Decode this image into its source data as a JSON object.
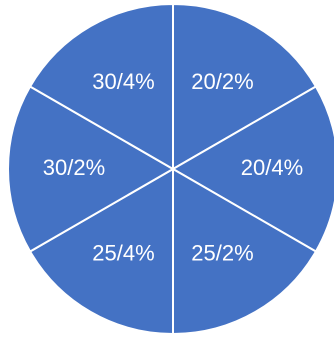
{
  "chart_data": {
    "type": "pie",
    "slices": [
      {
        "label": "20/2%",
        "value": 1
      },
      {
        "label": "20/4%",
        "value": 1
      },
      {
        "label": "25/2%",
        "value": 1
      },
      {
        "label": "25/4%",
        "value": 1
      },
      {
        "label": "30/2%",
        "value": 1
      },
      {
        "label": "30/4%",
        "value": 1
      }
    ],
    "start_angle_deg": 0,
    "direction": "clockwise",
    "slice_color": "#4472C4",
    "border_color": "#FFFFFF",
    "label_color": "#FFFFFF",
    "legend": "none"
  }
}
